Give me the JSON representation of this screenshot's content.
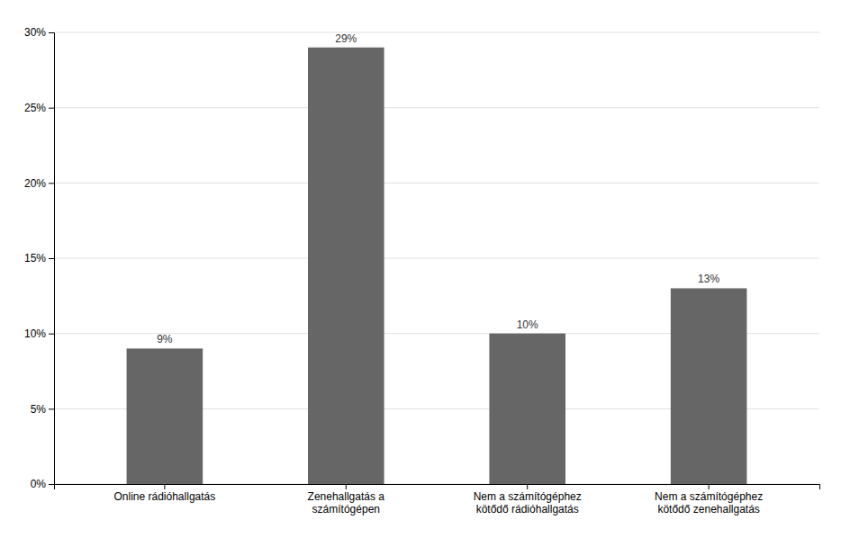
{
  "chart_data": {
    "type": "bar",
    "categories": [
      "Online rádióhallgatás",
      "Zenehallgatás a\nszámítógépen",
      "Nem a számítógéphez\nkötődő rádióhallgatás",
      "Nem a számítógéphez\nkötődő zenehallgatás"
    ],
    "values": [
      9,
      29,
      10,
      13
    ],
    "value_labels": [
      "9%",
      "29%",
      "10%",
      "13%"
    ],
    "color": "#666666",
    "ylim": [
      0,
      30
    ],
    "yticks": [
      {
        "value": 0,
        "label": "0%"
      },
      {
        "value": 5,
        "label": "5%"
      },
      {
        "value": 10,
        "label": "10%"
      },
      {
        "value": 15,
        "label": "15%"
      },
      {
        "value": 20,
        "label": "20%"
      },
      {
        "value": 25,
        "label": "25%"
      },
      {
        "value": 30,
        "label": "30%"
      }
    ],
    "grid": true,
    "data_labels": true
  }
}
